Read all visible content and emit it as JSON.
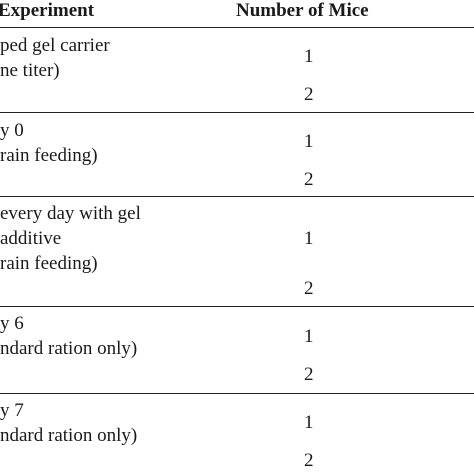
{
  "table": {
    "headers": {
      "experiment": "Experiment",
      "number_of_mice": "Number of Mice"
    },
    "rows": [
      {
        "description": [
          "ped gel carrier",
          "ne titer)"
        ],
        "mice": [
          "1",
          "2"
        ]
      },
      {
        "description": [
          "y 0",
          "rain feeding)"
        ],
        "mice": [
          "1",
          "2"
        ]
      },
      {
        "description": [
          "every day with gel",
          "additive",
          "rain feeding)"
        ],
        "mice": [
          "1",
          "2"
        ]
      },
      {
        "description": [
          "y 6",
          "ndard ration only)"
        ],
        "mice": [
          "1",
          "2"
        ]
      },
      {
        "description": [
          "y 7",
          "ndard ration only)"
        ],
        "mice": [
          "1",
          "2"
        ]
      }
    ]
  }
}
